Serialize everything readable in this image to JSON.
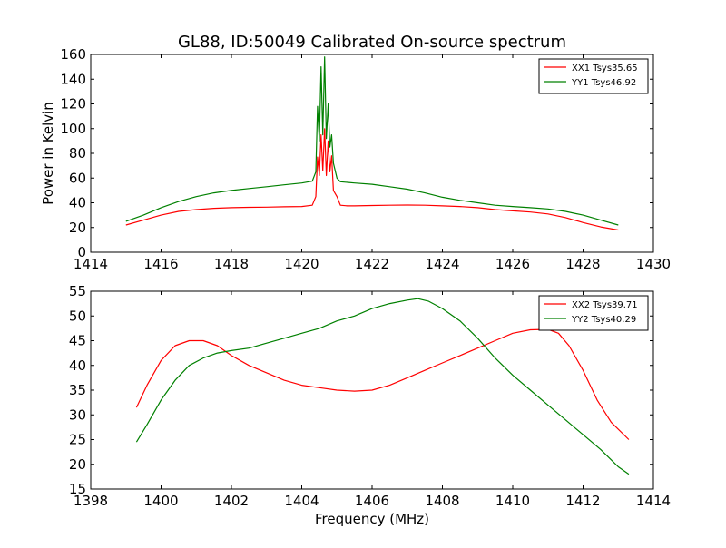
{
  "chart_data": [
    {
      "type": "line",
      "title": "GL88, ID:50049 Calibrated On-source spectrum",
      "xlabel": "",
      "ylabel": "Power in Kelvin",
      "xlim": [
        1414,
        1430
      ],
      "ylim": [
        0,
        160
      ],
      "xticks": [
        1414,
        1416,
        1418,
        1420,
        1422,
        1424,
        1426,
        1428,
        1430
      ],
      "yticks": [
        0,
        20,
        40,
        60,
        80,
        100,
        120,
        140,
        160
      ],
      "grid": false,
      "legend_position": "top-right",
      "series": [
        {
          "name": "XX1 Tsys35.65",
          "color": "#ff0000",
          "x": [
            1415.0,
            1415.5,
            1416.0,
            1416.5,
            1417.0,
            1417.5,
            1418.0,
            1418.5,
            1419.0,
            1419.5,
            1420.0,
            1420.3,
            1420.4,
            1420.45,
            1420.5,
            1420.55,
            1420.6,
            1420.65,
            1420.7,
            1420.75,
            1420.8,
            1420.85,
            1420.9,
            1421.0,
            1421.1,
            1421.3,
            1421.5,
            1422.0,
            1422.5,
            1423.0,
            1423.5,
            1424.0,
            1424.5,
            1425.0,
            1425.5,
            1426.0,
            1426.5,
            1427.0,
            1427.5,
            1428.0,
            1428.5,
            1429.0
          ],
          "values": [
            22,
            26,
            30,
            33,
            34.5,
            35.5,
            36,
            36.3,
            36.5,
            36.8,
            37,
            38,
            45,
            77,
            62,
            95,
            66,
            100,
            62,
            90,
            65,
            78,
            50,
            45,
            38,
            37.5,
            37.5,
            37.8,
            38,
            38.2,
            38,
            37.5,
            37,
            36,
            34.5,
            33.5,
            32.5,
            31,
            28,
            24,
            20.5,
            18
          ]
        },
        {
          "name": "YY1 Tsys46.92",
          "color": "#008000",
          "x": [
            1415.0,
            1415.5,
            1416.0,
            1416.5,
            1417.0,
            1417.5,
            1418.0,
            1418.5,
            1419.0,
            1419.5,
            1420.0,
            1420.3,
            1420.4,
            1420.45,
            1420.5,
            1420.55,
            1420.6,
            1420.65,
            1420.7,
            1420.75,
            1420.8,
            1420.85,
            1420.9,
            1421.0,
            1421.1,
            1421.3,
            1421.5,
            1422.0,
            1422.5,
            1423.0,
            1423.5,
            1424.0,
            1424.5,
            1425.0,
            1425.5,
            1426.0,
            1426.5,
            1427.0,
            1427.5,
            1428.0,
            1428.5,
            1429.0
          ],
          "values": [
            25,
            30,
            36,
            41,
            45,
            48,
            50,
            51.5,
            53,
            54.5,
            56,
            57.5,
            65,
            118,
            90,
            150,
            95,
            158,
            92,
            120,
            85,
            95,
            72,
            60,
            57,
            56.5,
            56,
            55,
            53,
            51,
            48,
            44.5,
            42,
            40,
            38,
            37,
            36,
            35,
            33,
            30,
            26,
            22
          ]
        }
      ]
    },
    {
      "type": "line",
      "title": "",
      "xlabel": "Frequency (MHz)",
      "ylabel": "",
      "xlim": [
        1398,
        1414
      ],
      "ylim": [
        15,
        55
      ],
      "xticks": [
        1398,
        1400,
        1402,
        1404,
        1406,
        1408,
        1410,
        1412,
        1414
      ],
      "yticks": [
        15,
        20,
        25,
        30,
        35,
        40,
        45,
        50,
        55
      ],
      "grid": false,
      "legend_position": "top-right",
      "series": [
        {
          "name": "XX2 Tsys39.71",
          "color": "#ff0000",
          "x": [
            1399.3,
            1399.6,
            1400.0,
            1400.4,
            1400.8,
            1401.2,
            1401.6,
            1402.0,
            1402.5,
            1403.0,
            1403.5,
            1404.0,
            1404.5,
            1405.0,
            1405.5,
            1406.0,
            1406.5,
            1407.0,
            1407.5,
            1408.0,
            1408.5,
            1409.0,
            1409.5,
            1410.0,
            1410.5,
            1411.0,
            1411.3,
            1411.6,
            1412.0,
            1412.4,
            1412.8,
            1413.3
          ],
          "values": [
            31.5,
            36,
            41,
            44,
            45,
            45,
            44,
            42,
            40,
            38.5,
            37,
            36,
            35.5,
            35,
            34.8,
            35,
            36,
            37.5,
            39,
            40.5,
            42,
            43.5,
            45,
            46.5,
            47.2,
            47.3,
            46.5,
            44,
            39,
            33,
            28.5,
            25
          ]
        },
        {
          "name": "YY2 Tsys40.29",
          "color": "#008000",
          "x": [
            1399.3,
            1399.6,
            1400.0,
            1400.4,
            1400.8,
            1401.2,
            1401.6,
            1402.0,
            1402.5,
            1403.0,
            1403.5,
            1404.0,
            1404.5,
            1405.0,
            1405.5,
            1406.0,
            1406.5,
            1407.0,
            1407.3,
            1407.6,
            1408.0,
            1408.5,
            1409.0,
            1409.5,
            1410.0,
            1410.5,
            1411.0,
            1411.5,
            1412.0,
            1412.5,
            1413.0,
            1413.3
          ],
          "values": [
            24.5,
            28,
            33,
            37,
            40,
            41.5,
            42.5,
            43,
            43.5,
            44.5,
            45.5,
            46.5,
            47.5,
            49,
            50,
            51.5,
            52.5,
            53.2,
            53.5,
            53,
            51.5,
            49,
            45.5,
            41.5,
            38,
            35,
            32,
            29,
            26,
            23,
            19.5,
            18
          ]
        }
      ]
    }
  ]
}
